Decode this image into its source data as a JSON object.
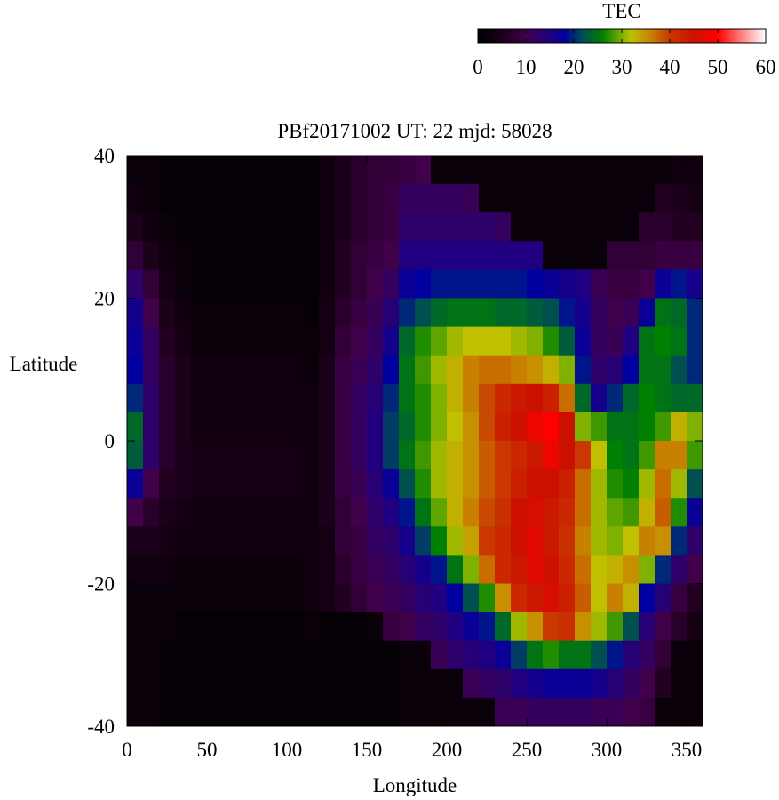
{
  "chart_data": {
    "type": "heatmap",
    "title": "PBf20171002  UT: 22  mjd: 58028",
    "xlabel": "Longitude",
    "ylabel": "Latitude",
    "xlim": [
      0,
      360
    ],
    "ylim": [
      -40,
      40
    ],
    "x_ticks": [
      0,
      50,
      100,
      150,
      200,
      250,
      300,
      350
    ],
    "y_ticks": [
      40,
      20,
      0,
      -20,
      -40
    ],
    "grid": false,
    "colorbar": {
      "label": "TEC",
      "range": [
        0,
        60
      ],
      "ticks": [
        0,
        10,
        20,
        30,
        40,
        50,
        60
      ],
      "placement": "top-right",
      "colormap": [
        [
          0,
          "#000000"
        ],
        [
          5,
          "#1a0018"
        ],
        [
          10,
          "#40004a"
        ],
        [
          15,
          "#200080"
        ],
        [
          18,
          "#0000a0"
        ],
        [
          22,
          "#005050"
        ],
        [
          26,
          "#008000"
        ],
        [
          30,
          "#80b000"
        ],
        [
          32,
          "#c0c000"
        ],
        [
          36,
          "#c88000"
        ],
        [
          40,
          "#c83800"
        ],
        [
          45,
          "#cc1000"
        ],
        [
          50,
          "#ff0000"
        ],
        [
          55,
          "#ff8080"
        ],
        [
          60,
          "#ffffff"
        ]
      ]
    },
    "lon_step": 10,
    "lat_step": 4,
    "lon_centers": [
      5,
      15,
      25,
      35,
      45,
      55,
      65,
      75,
      85,
      95,
      105,
      115,
      125,
      135,
      145,
      155,
      165,
      175,
      185,
      195,
      205,
      215,
      225,
      235,
      245,
      255,
      265,
      275,
      285,
      295,
      305,
      315,
      325,
      335,
      345,
      355
    ],
    "lat_centers": [
      38,
      34,
      30,
      26,
      22,
      18,
      14,
      10,
      6,
      2,
      -2,
      -6,
      -10,
      -14,
      -18,
      -22,
      -26,
      -30,
      -34,
      -38
    ],
    "tec_by_longitude": [
      [
        2,
        3,
        5,
        8,
        13,
        16,
        17,
        18,
        20,
        24,
        23,
        17,
        10,
        5,
        3,
        2,
        2,
        2,
        2,
        2
      ],
      [
        2,
        2,
        3,
        5,
        8,
        10,
        12,
        12,
        13,
        13,
        13,
        10,
        7,
        5,
        3,
        2,
        2,
        2,
        2,
        2
      ],
      [
        1,
        1,
        2,
        3,
        4,
        5,
        6,
        7,
        7,
        7,
        7,
        6,
        5,
        4,
        3,
        2,
        2,
        1,
        1,
        1
      ],
      [
        1,
        1,
        1,
        2,
        2,
        3,
        4,
        5,
        5,
        5,
        5,
        5,
        4,
        3,
        2,
        2,
        1,
        1,
        1,
        1
      ],
      [
        1,
        1,
        1,
        1,
        1,
        2,
        2,
        3,
        3,
        3,
        4,
        4,
        3,
        3,
        2,
        2,
        1,
        1,
        1,
        1
      ],
      [
        1,
        1,
        1,
        1,
        1,
        2,
        2,
        3,
        3,
        3,
        4,
        4,
        3,
        3,
        2,
        2,
        1,
        1,
        1,
        1
      ],
      [
        1,
        1,
        1,
        1,
        1,
        2,
        2,
        3,
        3,
        3,
        4,
        4,
        3,
        3,
        2,
        2,
        1,
        1,
        1,
        1
      ],
      [
        1,
        1,
        1,
        1,
        1,
        2,
        2,
        3,
        3,
        3,
        4,
        4,
        3,
        3,
        2,
        2,
        1,
        1,
        1,
        1
      ],
      [
        1,
        1,
        1,
        1,
        1,
        2,
        2,
        3,
        3,
        3,
        4,
        4,
        3,
        3,
        2,
        2,
        1,
        1,
        1,
        1
      ],
      [
        1,
        1,
        1,
        1,
        1,
        2,
        2,
        3,
        3,
        3,
        4,
        4,
        3,
        3,
        2,
        2,
        1,
        1,
        1,
        1
      ],
      [
        1,
        1,
        1,
        1,
        1,
        2,
        2,
        3,
        3,
        3,
        4,
        4,
        3,
        3,
        2,
        2,
        1,
        1,
        1,
        1
      ],
      [
        1,
        1,
        1,
        1,
        1,
        1,
        2,
        2,
        3,
        3,
        3,
        3,
        3,
        3,
        3,
        3,
        2,
        1,
        1,
        1
      ],
      [
        3,
        3,
        3,
        3,
        3,
        4,
        4,
        5,
        5,
        5,
        5,
        5,
        5,
        4,
        4,
        4,
        1,
        1,
        1,
        1
      ],
      [
        5,
        5,
        5,
        6,
        6,
        7,
        8,
        9,
        9,
        9,
        9,
        9,
        8,
        8,
        7,
        6,
        1,
        1,
        1,
        1
      ],
      [
        7,
        7,
        7,
        8,
        8,
        9,
        10,
        11,
        12,
        12,
        12,
        11,
        10,
        9,
        9,
        8,
        1,
        1,
        1,
        1
      ],
      [
        8,
        8,
        8,
        9,
        10,
        11,
        12,
        13,
        14,
        15,
        15,
        14,
        13,
        12,
        11,
        10,
        2,
        1,
        1,
        1
      ],
      [
        8,
        9,
        9,
        10,
        12,
        14,
        16,
        18,
        20,
        21,
        21,
        17,
        15,
        13,
        12,
        11,
        9,
        1,
        1,
        1
      ],
      [
        9,
        12,
        13,
        15,
        17,
        20,
        24,
        25,
        25,
        24,
        25,
        22,
        19,
        16,
        14,
        12,
        10,
        2,
        2,
        2
      ],
      [
        10,
        12,
        13,
        15,
        18,
        22,
        27,
        28,
        27,
        27,
        28,
        27,
        25,
        21,
        16,
        14,
        12,
        2,
        2,
        2
      ],
      [
        2,
        12,
        13,
        15,
        19,
        24,
        29,
        31,
        30,
        30,
        31,
        31,
        29,
        26,
        19,
        15,
        13,
        11,
        2,
        2
      ],
      [
        2,
        12,
        13,
        15,
        19,
        25,
        31,
        33,
        33,
        32,
        33,
        33,
        33,
        31,
        25,
        18,
        15,
        13,
        2,
        2
      ],
      [
        2,
        11,
        13,
        15,
        19,
        25,
        32,
        36,
        36,
        35,
        35,
        35,
        36,
        34,
        30,
        22,
        17,
        14,
        11,
        2
      ],
      [
        2,
        2,
        13,
        15,
        19,
        25,
        32,
        37,
        39,
        39,
        38,
        38,
        39,
        40,
        37,
        27,
        19,
        15,
        12,
        2
      ],
      [
        2,
        2,
        12,
        15,
        19,
        24,
        32,
        37,
        42,
        43,
        40,
        40,
        41,
        42,
        42,
        35,
        24,
        17,
        13,
        11
      ],
      [
        2,
        2,
        2,
        15,
        19,
        24,
        31,
        36,
        44,
        45,
        42,
        43,
        45,
        45,
        44,
        42,
        31,
        21,
        15,
        11
      ],
      [
        2,
        2,
        2,
        15,
        18,
        23,
        30,
        35,
        45,
        48,
        44,
        45,
        46,
        47,
        47,
        44,
        35,
        25,
        16,
        12
      ],
      [
        2,
        2,
        2,
        2,
        17,
        22,
        27,
        33,
        43,
        50,
        48,
        45,
        44,
        44,
        45,
        46,
        40,
        27,
        17,
        12
      ],
      [
        2,
        2,
        2,
        2,
        16,
        19,
        23,
        30,
        37,
        45,
        45,
        43,
        42,
        41,
        42,
        43,
        41,
        25,
        17,
        12
      ],
      [
        2,
        2,
        2,
        2,
        15,
        16,
        17,
        19,
        24,
        30,
        40,
        37,
        37,
        36,
        37,
        38,
        35,
        25,
        17,
        12
      ],
      [
        2,
        2,
        2,
        2,
        11,
        12,
        12,
        13,
        16,
        28,
        32,
        31,
        31,
        31,
        32,
        32,
        31,
        22,
        16,
        11
      ],
      [
        2,
        2,
        2,
        8,
        9,
        10,
        11,
        14,
        20,
        25,
        26,
        27,
        29,
        30,
        33,
        36,
        28,
        19,
        14,
        11
      ],
      [
        2,
        2,
        2,
        8,
        9,
        11,
        15,
        18,
        24,
        25,
        25,
        26,
        28,
        32,
        35,
        33,
        22,
        14,
        12,
        10
      ],
      [
        2,
        2,
        7,
        8,
        10,
        17,
        25,
        25,
        26,
        26,
        28,
        31,
        33,
        36,
        30,
        18,
        14,
        12,
        10,
        9
      ],
      [
        2,
        6,
        7,
        9,
        17,
        25,
        26,
        25,
        25,
        28,
        36,
        37,
        38,
        35,
        20,
        14,
        10,
        8,
        6,
        2
      ],
      [
        3,
        5,
        6,
        9,
        19,
        24,
        25,
        22,
        24,
        33,
        36,
        31,
        27,
        20,
        13,
        9,
        7,
        2,
        2,
        2
      ],
      [
        3,
        4,
        6,
        9,
        16,
        20,
        20,
        20,
        24,
        30,
        28,
        22,
        17,
        13,
        10,
        6,
        4,
        2,
        2,
        2
      ]
    ]
  }
}
